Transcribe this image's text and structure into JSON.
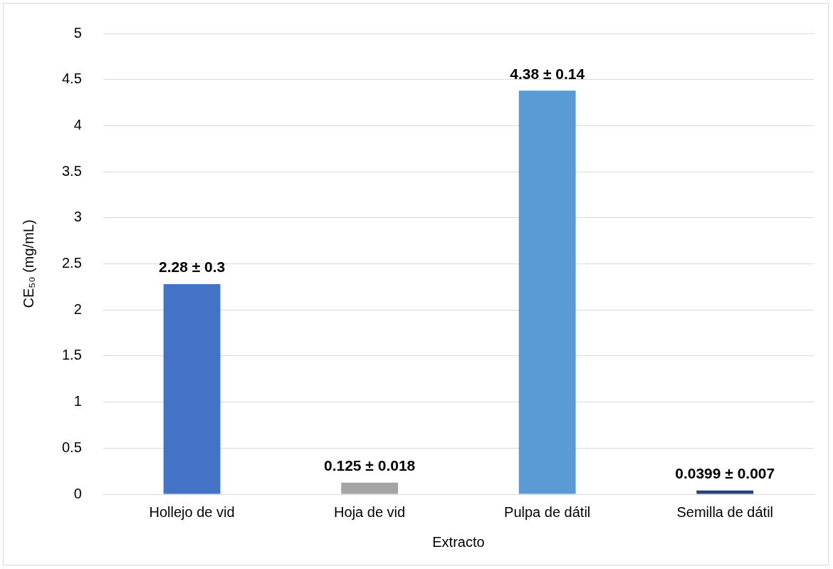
{
  "chart_data": {
    "type": "bar",
    "xlabel": "Extracto",
    "ylabel": "CE₅₀ (mg/mL)",
    "categories": [
      "Hollejo de vid",
      "Hoja de vid",
      "Pulpa de dátil",
      "Semilla de dátil"
    ],
    "values": [
      2.28,
      0.125,
      4.38,
      0.0399
    ],
    "colors": [
      "#4472c4",
      "#a5a5a5",
      "#5b9bd5",
      "#264478"
    ],
    "value_labels": [
      "2.28 ± 0.3",
      "0.125 ± 0.018",
      "4.38 ± 0.14",
      "0.0399 ± 0.007"
    ],
    "ylim": [
      0,
      5
    ],
    "yticks": [
      0,
      0.5,
      1,
      1.5,
      2,
      2.5,
      3,
      3.5,
      4,
      4.5,
      5
    ],
    "grid": "y",
    "legend": false
  }
}
